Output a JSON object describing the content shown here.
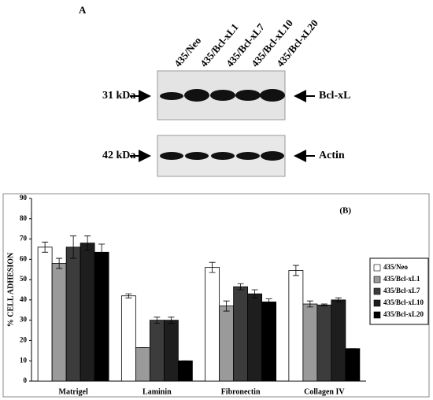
{
  "blot": {
    "panel": "A",
    "lanes": [
      "435/Neo",
      "435/Bcl-xL1",
      "435/Bcl-xL7",
      "435/Bcl-xL10",
      "435/Bcl-xL20"
    ],
    "rows": [
      {
        "marker": "31 kDa",
        "protein": "Bcl-xL"
      },
      {
        "marker": "42 kDa",
        "protein": "Actin"
      }
    ]
  },
  "chart_data": {
    "type": "bar",
    "panel": "(B)",
    "ylabel": "% CELL ADHESION",
    "categories": [
      "Matrigel",
      "Laminin",
      "Fibronectin",
      "Collagen IV"
    ],
    "series": [
      {
        "name": "435/Neo",
        "color": "#ffffff",
        "values": [
          66,
          42,
          56,
          54.5
        ],
        "errors": [
          2.5,
          1,
          2.5,
          2.5
        ]
      },
      {
        "name": "435/Bcl-xL1",
        "color": "#9a9a9a",
        "values": [
          58,
          16.5,
          37,
          38
        ],
        "errors": [
          2.5,
          0,
          2.5,
          1.5
        ]
      },
      {
        "name": "435/Bcl-xL7",
        "color": "#3c3c3c",
        "values": [
          66,
          30,
          46.5,
          37.5
        ],
        "errors": [
          5.5,
          1.5,
          1.5,
          0.5
        ]
      },
      {
        "name": "435/Bcl-xL10",
        "color": "#1e1e1e",
        "values": [
          68,
          30,
          43,
          40
        ],
        "errors": [
          3.5,
          1.5,
          2,
          1
        ]
      },
      {
        "name": "435/Bcl-xL20",
        "color": "#000000",
        "values": [
          63.5,
          10,
          39,
          16
        ],
        "errors": [
          4,
          0,
          1.5,
          0
        ]
      }
    ],
    "ylim": [
      0,
      90
    ],
    "yticks": [
      0,
      10,
      20,
      30,
      40,
      50,
      60,
      70,
      80,
      90
    ],
    "grid": false,
    "legend": "right"
  }
}
